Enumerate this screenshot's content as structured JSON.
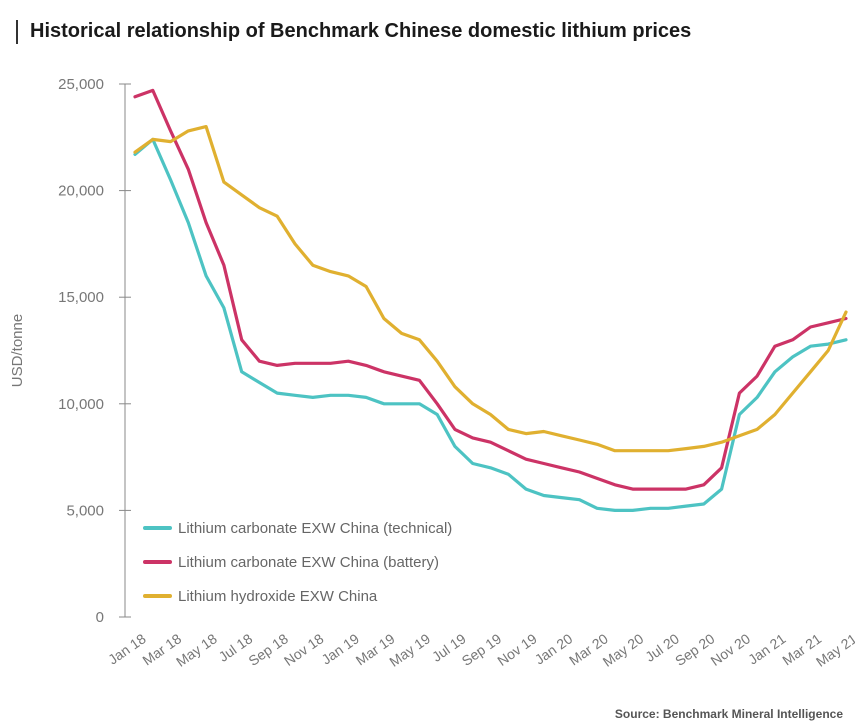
{
  "title": "Historical relationship of Benchmark Chinese domestic lithium prices",
  "source": "Source: Benchmark Mineral Intelligence",
  "chart_data": {
    "type": "line",
    "title": "Historical relationship of Benchmark Chinese domestic lithium prices",
    "xlabel": "",
    "ylabel": "USD/tonne",
    "ylim": [
      0,
      25000
    ],
    "yticks": [
      0,
      5000,
      10000,
      15000,
      20000,
      25000
    ],
    "ytick_labels": [
      "0",
      "5,000",
      "10,000",
      "15,000",
      "20,000",
      "25,000"
    ],
    "grid": false,
    "legend_position": "bottom-left",
    "x": [
      "Jan 18",
      "Feb 18",
      "Mar 18",
      "Apr 18",
      "May 18",
      "Jun 18",
      "Jul 18",
      "Aug 18",
      "Sep 18",
      "Oct 18",
      "Nov 18",
      "Dec 18",
      "Jan 19",
      "Feb 19",
      "Mar 19",
      "Apr 19",
      "May 19",
      "Jun 19",
      "Jul 19",
      "Aug 19",
      "Sep 19",
      "Oct 19",
      "Nov 19",
      "Dec 19",
      "Jan 20",
      "Feb 20",
      "Mar 20",
      "Apr 20",
      "May 20",
      "Jun 20",
      "Jul 20",
      "Aug 20",
      "Sep 20",
      "Oct 20",
      "Nov 20",
      "Dec 20",
      "Jan 21",
      "Feb 21",
      "Mar 21",
      "Apr 21",
      "May 21"
    ],
    "xtick_labels": [
      "Jan 18",
      "Mar 18",
      "May 18",
      "Jul 18",
      "Sep 18",
      "Nov 18",
      "Jan 19",
      "Mar 19",
      "May 19",
      "Jul 19",
      "Sep 19",
      "Nov 19",
      "Jan 20",
      "Mar 20",
      "May 20",
      "Jul 20",
      "Sep 20",
      "Nov 20",
      "Jan 21",
      "Mar 21",
      "May 21"
    ],
    "series": [
      {
        "name": "Lithium carbonate EXW China (technical)",
        "color": "#4dc3c3",
        "values": [
          21700,
          22400,
          20500,
          18500,
          16000,
          14500,
          11500,
          11000,
          10500,
          10400,
          10300,
          10400,
          10400,
          10300,
          10000,
          10000,
          10000,
          9500,
          8000,
          7200,
          7000,
          6700,
          6000,
          5700,
          5600,
          5500,
          5100,
          5000,
          5000,
          5100,
          5100,
          5200,
          5300,
          6000,
          9500,
          10300,
          11500,
          12200,
          12700,
          12800,
          13000
        ]
      },
      {
        "name": "Lithium carbonate EXW China (battery)",
        "color": "#cc3366",
        "values": [
          24400,
          24700,
          22800,
          21000,
          18500,
          16500,
          13000,
          12000,
          11800,
          11900,
          11900,
          11900,
          12000,
          11800,
          11500,
          11300,
          11100,
          10000,
          8800,
          8400,
          8200,
          7800,
          7400,
          7200,
          7000,
          6800,
          6500,
          6200,
          6000,
          6000,
          6000,
          6000,
          6200,
          7000,
          10500,
          11300,
          12700,
          13000,
          13600,
          13800,
          14000
        ]
      },
      {
        "name": "Lithium hydroxide EXW China",
        "color": "#e0b030",
        "values": [
          21800,
          22400,
          22300,
          22800,
          23000,
          20400,
          19800,
          19200,
          18800,
          17500,
          16500,
          16200,
          16000,
          15500,
          14000,
          13300,
          13000,
          12000,
          10800,
          10000,
          9500,
          8800,
          8600,
          8700,
          8500,
          8300,
          8100,
          7800,
          7800,
          7800,
          7800,
          7900,
          8000,
          8200,
          8500,
          8800,
          9500,
          10500,
          11500,
          12500,
          14300
        ]
      }
    ]
  }
}
